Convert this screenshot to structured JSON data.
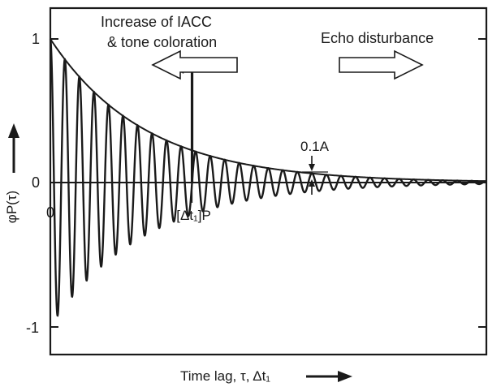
{
  "chart_data": {
    "type": "line",
    "xlabel": "Time lag, τ, Δt₁",
    "ylabel": "φP(τ)",
    "y_ticks": [
      "1",
      "0",
      "-1"
    ],
    "x_origin_label": "0",
    "ylim": [
      -1.2,
      1.2
    ],
    "xlim": [
      0,
      1
    ],
    "series": [
      {
        "kind": "damped-cosine",
        "envelope_decay": 4.6,
        "oscillations": 30,
        "start_value": 1.0
      },
      {
        "kind": "envelope",
        "start_value": 1.0,
        "decay": 4.6
      }
    ],
    "impulse": {
      "x": 0.325,
      "label": "A",
      "height": 0.8
    },
    "marker": {
      "x": 0.325,
      "label": "[Δt₁]P"
    },
    "annotation_01A": "0.1A",
    "annotations": {
      "left": [
        "Increase of IACC",
        "& tone coloration"
      ],
      "right": "Echo disturbance"
    }
  }
}
